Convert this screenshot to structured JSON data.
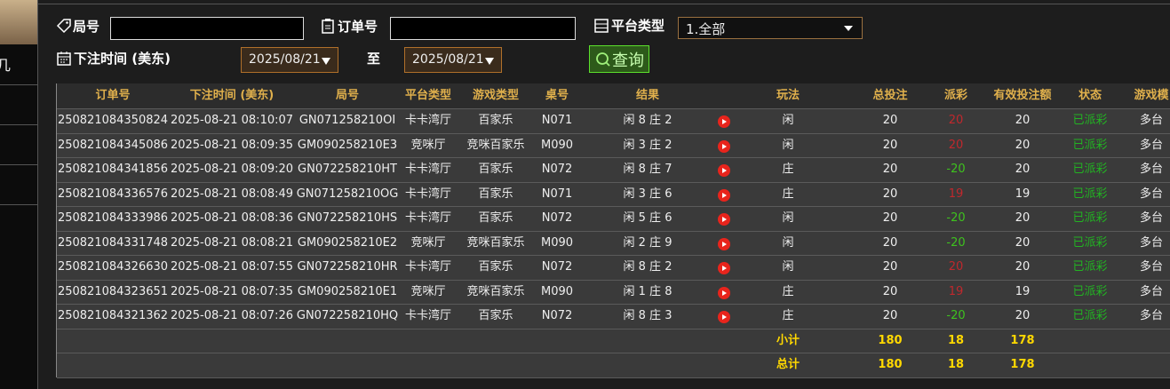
{
  "sidebar": {
    "label": "几"
  },
  "filters": {
    "round_label": "局号",
    "order_label": "订单号",
    "platform_label": "平台类型",
    "platform_value": "1.全部",
    "time_label": "下注时间 (美东)",
    "date_from": "2025/08/21",
    "to_label": "至",
    "date_to": "2025/08/21",
    "query_button": "查询"
  },
  "table": {
    "headers": [
      "订单号",
      "下注时间 (美东)",
      "局号",
      "平台类型",
      "游戏类型",
      "桌号",
      "结果",
      "玩法",
      "总投注",
      "派彩",
      "有效投注额",
      "状态",
      "游戏模"
    ],
    "rows": [
      [
        "250821084350824",
        "2025-08-21 08:10:07",
        "GN071258210OI",
        "卡卡湾厅",
        "百家乐",
        "N071",
        "闲 8 庄 2",
        "闲",
        "20",
        "20",
        "20",
        "已派彩",
        "多台"
      ],
      [
        "250821084345086",
        "2025-08-21 08:09:35",
        "GM090258210E3",
        "竞咪厅",
        "竞咪百家乐",
        "M090",
        "闲 3 庄 2",
        "闲",
        "20",
        "20",
        "20",
        "已派彩",
        "多台"
      ],
      [
        "250821084341856",
        "2025-08-21 08:09:20",
        "GN072258210HT",
        "卡卡湾厅",
        "百家乐",
        "N072",
        "闲 8 庄 7",
        "庄",
        "20",
        "-20",
        "20",
        "已派彩",
        "多台"
      ],
      [
        "250821084336576",
        "2025-08-21 08:08:49",
        "GN071258210OG",
        "卡卡湾厅",
        "百家乐",
        "N071",
        "闲 3 庄 6",
        "庄",
        "20",
        "19",
        "19",
        "已派彩",
        "多台"
      ],
      [
        "250821084333986",
        "2025-08-21 08:08:36",
        "GN072258210HS",
        "卡卡湾厅",
        "百家乐",
        "N072",
        "闲 5 庄 6",
        "闲",
        "20",
        "-20",
        "20",
        "已派彩",
        "多台"
      ],
      [
        "250821084331748",
        "2025-08-21 08:08:21",
        "GM090258210E2",
        "竞咪厅",
        "竞咪百家乐",
        "M090",
        "闲 2 庄 9",
        "闲",
        "20",
        "-20",
        "20",
        "已派彩",
        "多台"
      ],
      [
        "250821084326630",
        "2025-08-21 08:07:55",
        "GN072258210HR",
        "卡卡湾厅",
        "百家乐",
        "N072",
        "闲 8 庄 2",
        "闲",
        "20",
        "20",
        "20",
        "已派彩",
        "多台"
      ],
      [
        "250821084323651",
        "2025-08-21 08:07:35",
        "GM090258210E1",
        "竞咪厅",
        "竞咪百家乐",
        "M090",
        "闲 1 庄 8",
        "庄",
        "20",
        "19",
        "19",
        "已派彩",
        "多台"
      ],
      [
        "250821084321362",
        "2025-08-21 08:07:26",
        "GN072258210HQ",
        "卡卡湾厅",
        "百家乐",
        "N072",
        "闲 8 庄 3",
        "庄",
        "20",
        "-20",
        "20",
        "已派彩",
        "多台"
      ]
    ],
    "summary": [
      {
        "label": "小计",
        "total_bet": "180",
        "payout": "18",
        "valid_bet": "178"
      },
      {
        "label": "总计",
        "total_bet": "180",
        "payout": "18",
        "valid_bet": "178"
      }
    ]
  }
}
